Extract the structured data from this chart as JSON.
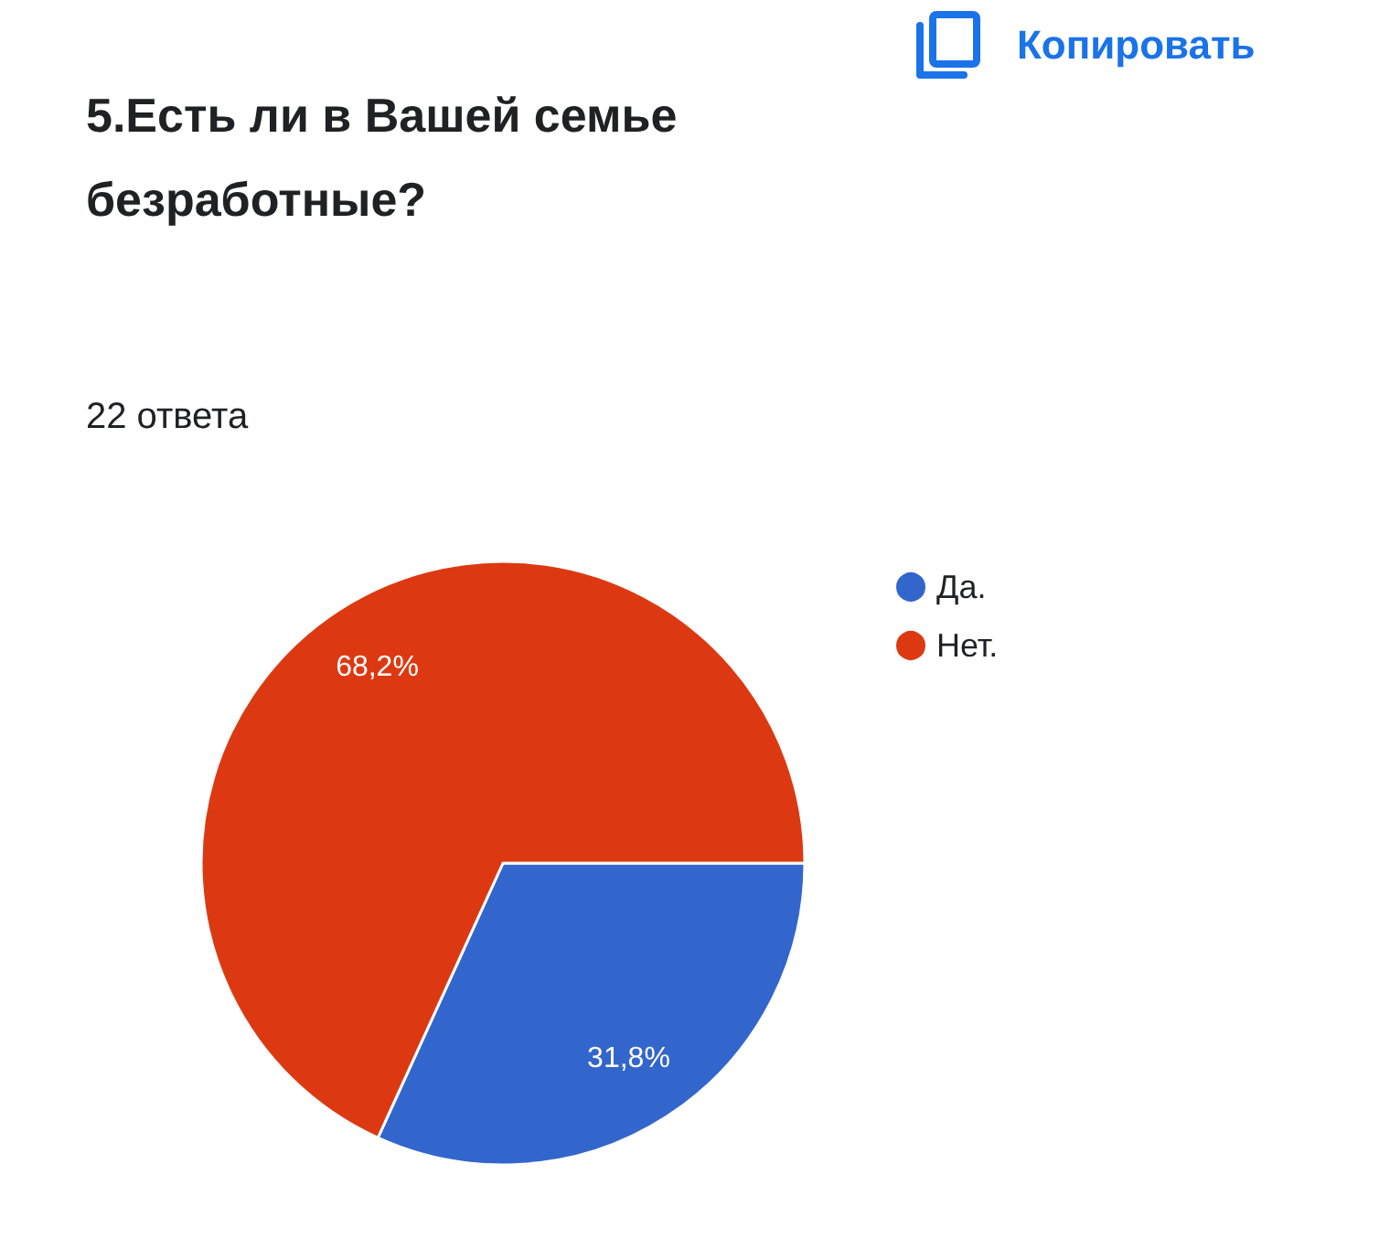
{
  "chart_data": {
    "type": "pie",
    "title": "5.Есть ли в Вашей семье безработные?",
    "subtitle": "22 ответа",
    "annotations": [
      "Копировать"
    ],
    "categories": [
      "Да.",
      "Нет."
    ],
    "values": [
      31.8,
      68.2
    ],
    "colors": [
      "#3366cc",
      "#dc3912"
    ],
    "value_labels": [
      "31,8%",
      "68,2%"
    ],
    "legend": "top right"
  }
}
